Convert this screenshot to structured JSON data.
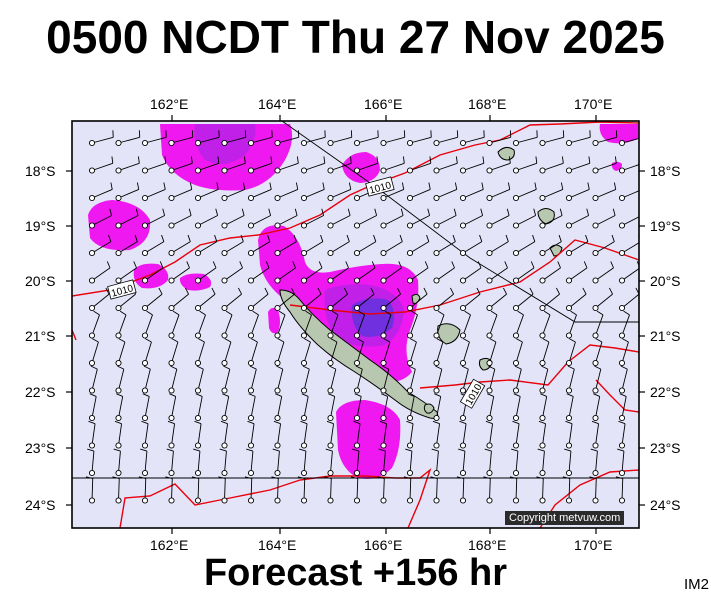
{
  "title": "0500 NCDT Thu 27 Nov 2025",
  "footer": "Forecast +156 hr",
  "image_code": "IM2",
  "copyright": "Copyright metvuw.com",
  "lon_labels": [
    "162°E",
    "164°E",
    "166°E",
    "168°E",
    "170°E"
  ],
  "lat_labels": [
    "18°S",
    "19°S",
    "20°S",
    "21°S",
    "22°S",
    "23°S",
    "24°S"
  ],
  "isobar_labels": [
    "1010",
    "1010",
    "1010"
  ],
  "colors": {
    "ocean": "#e4e4f8",
    "isobar": "#e8000b",
    "rain_light": "#f018f0",
    "rain_mid": "#c020e8",
    "rain_heavy": "#7030e0",
    "land": "#b8c8b0"
  }
}
